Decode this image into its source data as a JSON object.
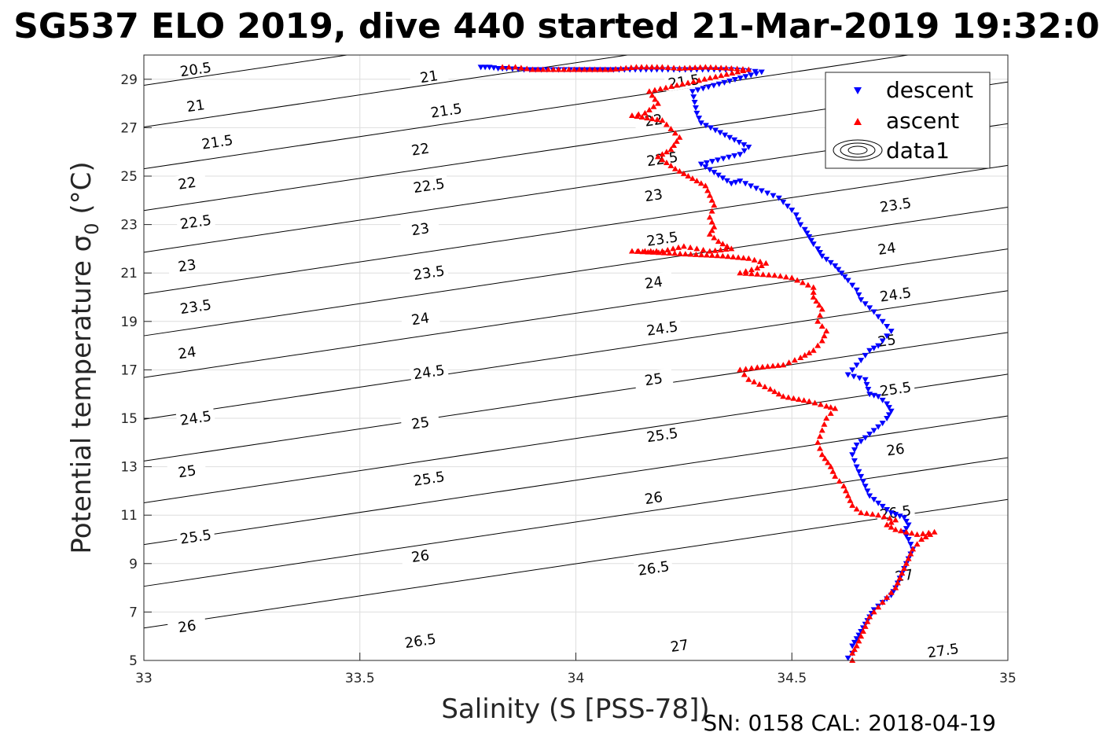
{
  "title": "SG537 ELO 2019, dive 440 started 21-Mar-2019 19:32:0",
  "footer": "SN: 0158  CAL: 2018-04-19",
  "chart_data": {
    "type": "scatter",
    "title": "SG537 ELO 2019, dive 440 started 21-Mar-2019 19:32:0",
    "xlabel": "Salinity (S [PSS-78])",
    "ylabel": "Potential temperature σ",
    "ylabel_sub": "0",
    "ylabel_unit": " (°C)",
    "xlim": [
      33,
      35
    ],
    "ylim": [
      5,
      30
    ],
    "xticks": [
      33,
      33.5,
      34,
      34.5,
      35
    ],
    "xtick_labels": [
      "33",
      "33.5",
      "34",
      "34.5",
      "35"
    ],
    "yticks": [
      5,
      7,
      9,
      11,
      13,
      15,
      17,
      19,
      21,
      23,
      25,
      27,
      29
    ],
    "ytick_labels": [
      "5",
      "7",
      "9",
      "11",
      "13",
      "15",
      "17",
      "19",
      "21",
      "23",
      "25",
      "27",
      "29"
    ],
    "grid": true,
    "legend_position": "top-right",
    "legend": [
      "descent",
      "ascent",
      "data1"
    ],
    "colors": {
      "descent": "#0000ff",
      "ascent": "#ff0000",
      "contour": "#000000",
      "grid": "#dedede"
    },
    "contour_levels": [
      20.5,
      21,
      21.5,
      22,
      22.5,
      23,
      23.5,
      24,
      24.5,
      25,
      25.5,
      26,
      26.5,
      27,
      27.5
    ],
    "contour_labels": [
      {
        "text": "20.5",
        "s": 33.12,
        "t": 29.4
      },
      {
        "text": "21",
        "s": 33.12,
        "t": 27.9
      },
      {
        "text": "21",
        "s": 33.66,
        "t": 29.1
      },
      {
        "text": "21.5",
        "s": 33.17,
        "t": 26.4
      },
      {
        "text": "21.5",
        "s": 33.7,
        "t": 27.7
      },
      {
        "text": "21.5",
        "s": 34.25,
        "t": 28.9
      },
      {
        "text": "22",
        "s": 33.1,
        "t": 24.7
      },
      {
        "text": "22",
        "s": 33.64,
        "t": 26.1
      },
      {
        "text": "22",
        "s": 34.18,
        "t": 27.3
      },
      {
        "text": "22.5",
        "s": 33.12,
        "t": 23.1
      },
      {
        "text": "22.5",
        "s": 33.66,
        "t": 24.6
      },
      {
        "text": "22.5",
        "s": 34.2,
        "t": 25.7
      },
      {
        "text": "23",
        "s": 33.1,
        "t": 21.3
      },
      {
        "text": "23",
        "s": 33.64,
        "t": 22.8
      },
      {
        "text": "23",
        "s": 34.18,
        "t": 24.2
      },
      {
        "text": "23.5",
        "s": 33.12,
        "t": 19.6
      },
      {
        "text": "23.5",
        "s": 33.66,
        "t": 21.0
      },
      {
        "text": "23.5",
        "s": 34.2,
        "t": 22.4
      },
      {
        "text": "23.5",
        "s": 34.74,
        "t": 23.8
      },
      {
        "text": "24",
        "s": 33.1,
        "t": 17.7
      },
      {
        "text": "24",
        "s": 33.64,
        "t": 19.1
      },
      {
        "text": "24",
        "s": 34.18,
        "t": 20.6
      },
      {
        "text": "24",
        "s": 34.72,
        "t": 22.0
      },
      {
        "text": "24.5",
        "s": 33.12,
        "t": 15.0
      },
      {
        "text": "24.5",
        "s": 33.66,
        "t": 16.9
      },
      {
        "text": "24.5",
        "s": 34.2,
        "t": 18.7
      },
      {
        "text": "24.5",
        "s": 34.74,
        "t": 20.1
      },
      {
        "text": "25",
        "s": 33.1,
        "t": 12.8
      },
      {
        "text": "25",
        "s": 33.64,
        "t": 14.8
      },
      {
        "text": "25",
        "s": 34.18,
        "t": 16.6
      },
      {
        "text": "25",
        "s": 34.72,
        "t": 18.2
      },
      {
        "text": "25.5",
        "s": 33.12,
        "t": 10.1
      },
      {
        "text": "25.5",
        "s": 33.66,
        "t": 12.5
      },
      {
        "text": "25.5",
        "s": 34.2,
        "t": 14.3
      },
      {
        "text": "25.5",
        "s": 34.74,
        "t": 16.2
      },
      {
        "text": "26",
        "s": 33.1,
        "t": 6.4
      },
      {
        "text": "26",
        "s": 33.64,
        "t": 9.3
      },
      {
        "text": "26",
        "s": 34.18,
        "t": 11.7
      },
      {
        "text": "26",
        "s": 34.74,
        "t": 13.7
      },
      {
        "text": "26.5",
        "s": 33.64,
        "t": 5.8
      },
      {
        "text": "26.5",
        "s": 34.18,
        "t": 8.8
      },
      {
        "text": "26.5",
        "s": 34.74,
        "t": 11.1
      },
      {
        "text": "27",
        "s": 34.24,
        "t": 5.6
      },
      {
        "text": "27",
        "s": 34.76,
        "t": 8.5
      },
      {
        "text": "27.5",
        "s": 34.85,
        "t": 5.4
      }
    ],
    "series": [
      {
        "name": "descent",
        "marker": "triangle-down",
        "color": "#0000ff",
        "points": [
          [
            33.78,
            29.5
          ],
          [
            33.8,
            29.5
          ],
          [
            33.82,
            29.45
          ],
          [
            33.84,
            29.45
          ],
          [
            33.88,
            29.4
          ],
          [
            33.92,
            29.4
          ],
          [
            34.0,
            29.4
          ],
          [
            34.1,
            29.4
          ],
          [
            34.2,
            29.4
          ],
          [
            34.28,
            29.4
          ],
          [
            34.36,
            29.4
          ],
          [
            34.4,
            29.35
          ],
          [
            34.43,
            29.3
          ],
          [
            34.27,
            28.5
          ],
          [
            34.28,
            27.6
          ],
          [
            34.29,
            27.2
          ],
          [
            34.4,
            26.2
          ],
          [
            34.38,
            25.9
          ],
          [
            34.29,
            25.5
          ],
          [
            34.36,
            24.7
          ],
          [
            34.38,
            24.8
          ],
          [
            34.43,
            24.4
          ],
          [
            34.47,
            24.1
          ],
          [
            34.5,
            23.6
          ],
          [
            34.51,
            23.4
          ],
          [
            34.52,
            23.0
          ],
          [
            34.53,
            22.8
          ],
          [
            34.54,
            22.5
          ],
          [
            34.55,
            22.2
          ],
          [
            34.56,
            22.0
          ],
          [
            34.57,
            21.7
          ],
          [
            34.6,
            21.3
          ],
          [
            34.63,
            20.7
          ],
          [
            34.65,
            20.3
          ],
          [
            34.66,
            19.9
          ],
          [
            34.69,
            19.4
          ],
          [
            34.71,
            19.0
          ],
          [
            34.73,
            18.6
          ],
          [
            34.72,
            18.4
          ],
          [
            34.7,
            18.0
          ],
          [
            34.68,
            17.8
          ],
          [
            34.66,
            17.4
          ],
          [
            34.64,
            17.0
          ],
          [
            34.63,
            16.8
          ],
          [
            34.67,
            16.6
          ],
          [
            34.68,
            16.0
          ],
          [
            34.7,
            15.9
          ],
          [
            34.72,
            15.6
          ],
          [
            34.73,
            15.3
          ],
          [
            34.72,
            15.0
          ],
          [
            34.71,
            14.8
          ],
          [
            34.69,
            14.5
          ],
          [
            34.67,
            14.2
          ],
          [
            34.65,
            13.9
          ],
          [
            34.64,
            13.5
          ],
          [
            34.65,
            13.0
          ],
          [
            34.66,
            12.6
          ],
          [
            34.67,
            12.2
          ],
          [
            34.68,
            11.8
          ],
          [
            34.7,
            11.5
          ],
          [
            34.73,
            11.1
          ],
          [
            34.76,
            10.9
          ],
          [
            34.77,
            10.6
          ],
          [
            34.76,
            10.3
          ],
          [
            34.77,
            10.0
          ],
          [
            34.78,
            9.6
          ],
          [
            34.77,
            9.2
          ],
          [
            34.76,
            8.8
          ],
          [
            34.75,
            8.4
          ],
          [
            34.74,
            8.0
          ],
          [
            34.73,
            7.7
          ],
          [
            34.71,
            7.4
          ],
          [
            34.69,
            7.1
          ],
          [
            34.68,
            6.8
          ],
          [
            34.67,
            6.5
          ],
          [
            34.66,
            6.2
          ],
          [
            34.65,
            5.9
          ],
          [
            34.64,
            5.6
          ],
          [
            34.64,
            5.3
          ],
          [
            34.63,
            5.1
          ]
        ]
      },
      {
        "name": "ascent",
        "marker": "triangle-up",
        "color": "#ff0000",
        "points": [
          [
            33.83,
            29.5
          ],
          [
            33.86,
            29.5
          ],
          [
            33.9,
            29.4
          ],
          [
            33.96,
            29.4
          ],
          [
            34.02,
            29.4
          ],
          [
            34.08,
            29.4
          ],
          [
            34.14,
            29.5
          ],
          [
            34.2,
            29.5
          ],
          [
            34.24,
            29.45
          ],
          [
            34.3,
            29.5
          ],
          [
            34.36,
            29.45
          ],
          [
            34.4,
            29.4
          ],
          [
            34.17,
            28.5
          ],
          [
            34.19,
            28.0
          ],
          [
            34.16,
            27.6
          ],
          [
            34.13,
            27.5
          ],
          [
            34.2,
            27.3
          ],
          [
            34.24,
            26.6
          ],
          [
            34.22,
            26.1
          ],
          [
            34.19,
            25.8
          ],
          [
            34.23,
            25.3
          ],
          [
            34.26,
            25.0
          ],
          [
            34.3,
            24.6
          ],
          [
            34.31,
            24.2
          ],
          [
            34.32,
            23.8
          ],
          [
            34.31,
            23.3
          ],
          [
            34.32,
            22.9
          ],
          [
            34.31,
            22.6
          ],
          [
            34.33,
            22.3
          ],
          [
            34.36,
            22.0
          ],
          [
            34.31,
            21.9
          ],
          [
            34.28,
            22.0
          ],
          [
            34.25,
            22.1
          ],
          [
            34.2,
            21.9
          ],
          [
            34.16,
            21.9
          ],
          [
            34.13,
            21.9
          ],
          [
            34.34,
            21.7
          ],
          [
            34.4,
            21.6
          ],
          [
            34.44,
            21.4
          ],
          [
            34.42,
            21.2
          ],
          [
            34.38,
            21.0
          ],
          [
            34.46,
            20.9
          ],
          [
            34.5,
            20.8
          ],
          [
            34.55,
            20.4
          ],
          [
            34.55,
            20.0
          ],
          [
            34.57,
            19.5
          ],
          [
            34.56,
            19.0
          ],
          [
            34.58,
            18.6
          ],
          [
            34.57,
            18.2
          ],
          [
            34.55,
            17.8
          ],
          [
            34.52,
            17.5
          ],
          [
            34.48,
            17.2
          ],
          [
            34.42,
            17.1
          ],
          [
            34.38,
            17.0
          ],
          [
            34.4,
            16.6
          ],
          [
            34.45,
            16.2
          ],
          [
            34.48,
            15.9
          ],
          [
            34.54,
            15.7
          ],
          [
            34.58,
            15.5
          ],
          [
            34.6,
            15.4
          ],
          [
            34.58,
            15.0
          ],
          [
            34.57,
            14.5
          ],
          [
            34.56,
            14.0
          ],
          [
            34.57,
            13.5
          ],
          [
            34.59,
            13.0
          ],
          [
            34.6,
            12.6
          ],
          [
            34.62,
            12.2
          ],
          [
            34.63,
            11.8
          ],
          [
            34.64,
            11.4
          ],
          [
            34.66,
            11.1
          ],
          [
            34.7,
            11.0
          ],
          [
            34.74,
            10.8
          ],
          [
            34.72,
            10.6
          ],
          [
            34.74,
            10.4
          ],
          [
            34.79,
            10.2
          ],
          [
            34.83,
            10.3
          ],
          [
            34.8,
            10.0
          ],
          [
            34.78,
            9.6
          ],
          [
            34.77,
            9.2
          ],
          [
            34.76,
            8.8
          ],
          [
            34.75,
            8.4
          ],
          [
            34.74,
            8.0
          ],
          [
            34.72,
            7.6
          ],
          [
            34.7,
            7.2
          ],
          [
            34.68,
            6.8
          ],
          [
            34.67,
            6.4
          ],
          [
            34.66,
            6.0
          ],
          [
            34.65,
            5.6
          ],
          [
            34.64,
            5.3
          ],
          [
            34.64,
            5.0
          ]
        ]
      },
      {
        "name": "data1",
        "marker": "contour",
        "color": "#000000",
        "points": []
      }
    ]
  }
}
